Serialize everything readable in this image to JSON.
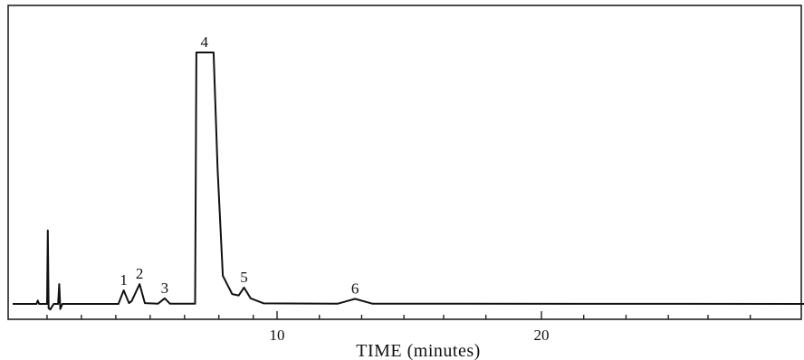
{
  "chart_data": {
    "type": "line",
    "title": "",
    "xlabel": "TIME (minutes)",
    "ylabel": "",
    "xlim": [
      0,
      30
    ],
    "ylim": [
      0,
      100
    ],
    "grid": false,
    "x_tick_labels": [
      {
        "x": 10,
        "label": "10"
      },
      {
        "x": 20,
        "label": "20"
      }
    ],
    "minor_ticks_x": [
      1.3,
      2.6,
      3.9,
      5.2,
      6.5,
      7.8,
      9.1,
      11.6,
      13.2,
      14.8,
      16.3,
      17.9,
      21.6,
      23.2,
      24.8,
      26.3,
      27.9
    ],
    "baseline": 2,
    "series": [
      {
        "points": [
          [
            0.0,
            2.0
          ],
          [
            0.9,
            2.0
          ],
          [
            0.95,
            3.2
          ],
          [
            1.0,
            2.0
          ],
          [
            1.3,
            2.0
          ],
          [
            1.33,
            28.0
          ],
          [
            1.36,
            0.5
          ],
          [
            1.42,
            0.0
          ],
          [
            1.55,
            2.0
          ],
          [
            1.72,
            2.0
          ],
          [
            1.76,
            9.0
          ],
          [
            1.8,
            0.2
          ],
          [
            1.88,
            2.0
          ],
          [
            4.0,
            2.0
          ],
          [
            4.2,
            6.8
          ],
          [
            4.4,
            2.3
          ],
          [
            4.5,
            3.0
          ],
          [
            4.8,
            9.0
          ],
          [
            5.0,
            2.3
          ],
          [
            5.5,
            2.1
          ],
          [
            5.75,
            4.0
          ],
          [
            5.95,
            2.1
          ],
          [
            6.9,
            2.1
          ],
          [
            6.95,
            91.0
          ],
          [
            7.6,
            91.0
          ],
          [
            7.75,
            50.0
          ],
          [
            7.95,
            12.0
          ],
          [
            8.3,
            5.5
          ],
          [
            8.55,
            5.0
          ],
          [
            8.75,
            7.8
          ],
          [
            9.0,
            4.0
          ],
          [
            9.5,
            2.2
          ],
          [
            12.3,
            2.1
          ],
          [
            12.95,
            3.8
          ],
          [
            13.6,
            2.1
          ],
          [
            30.0,
            2.0
          ]
        ]
      }
    ],
    "peak_labels": [
      {
        "label": "1",
        "x": 4.2,
        "y": 6.8
      },
      {
        "label": "2",
        "x": 4.8,
        "y": 9.0
      },
      {
        "label": "3",
        "x": 5.75,
        "y": 4.0
      },
      {
        "label": "4",
        "x": 7.25,
        "y": 91.0
      },
      {
        "label": "5",
        "x": 8.75,
        "y": 7.8
      },
      {
        "label": "6",
        "x": 12.95,
        "y": 3.8
      }
    ]
  }
}
